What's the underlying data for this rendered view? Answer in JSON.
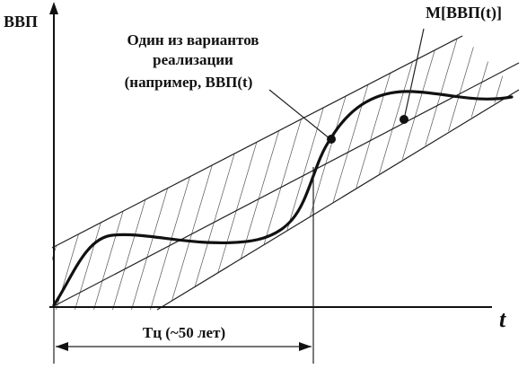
{
  "labels": {
    "y_axis": "ВВП",
    "x_axis": "t",
    "mean_label": "M[ВВП(t)]",
    "variant_line1": "Один из вариантов",
    "variant_line2": "реализации",
    "variant_line3": "(например, ВВП(t)",
    "period_label": "Tц  (~50 лет)"
  }
}
